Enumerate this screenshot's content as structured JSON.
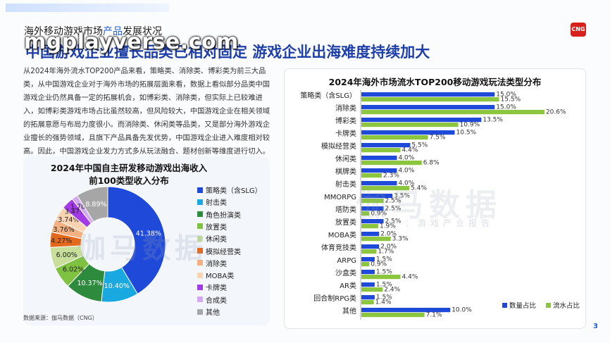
{
  "section_tag": {
    "prefix": "海外移动游戏市场",
    "highlight": "产品",
    "suffix": "发展状况"
  },
  "watermark_url": "mgplayverse.com",
  "headline": "中国游戏企业擅长品类已相对固定 游戏企业出海难度持续加大",
  "logo": "CNG",
  "intro": "从2024年海外流水TOP200产品来看，策略类、消除类、博彩类为前三大品类，从中国游戏企业对于海外市场的拓展层面来看，数据上看似部分品类中国游戏企业仍然具备一定的拓展机会，如博彩类、消除类，但实际上已较难进入，如博彩类游戏市场占比虽然较高，但风险较大，中国游戏企业在相关领域的拓展意愿与布局力度很小。而消除类、休闲类等品类，又是部分海外游戏企业擅长的强势领域，且旗下产品具备先发优势，中国游戏企业进入难度相对较高。因此，中国游戏企业发力方式多从玩法融合、题材创新等维度进行切入。",
  "source": "数据来源：伽马数据（CNG）",
  "page_number": "3",
  "watermarks": {
    "big": "伽马数据",
    "sub": "：游戏产业报告",
    "donut": "伽马数据"
  },
  "chart_data": [
    {
      "type": "pie",
      "title": "2024年中国自主研发移动游戏出海收入前100类型收入分布",
      "title_lines": [
        "2024年中国自主研发移动游戏出海收入",
        "前100类型收入分布"
      ],
      "categories": [
        "策略类（含SLG）",
        "射击类",
        "角色扮演类",
        "放置类",
        "休闲类",
        "模拟经营类",
        "消除类",
        "MOBA类",
        "卡牌类",
        "合成类",
        "其他"
      ],
      "values": [
        41.38,
        10.4,
        10.37,
        6.02,
        6.0,
        4.27,
        3.76,
        3.74,
        3.47,
        1.7,
        8.89
      ],
      "labels": [
        "41.38%",
        "10.40%",
        "10.37%",
        "6.02%",
        "6.00%",
        "4.27%",
        "3.76%",
        "3.74%",
        "3.47%",
        "1.70%",
        "8.89%"
      ],
      "colors": [
        "#1f49d8",
        "#19a8e0",
        "#2e8b3e",
        "#7fc241",
        "#c7df9a",
        "#e36a1c",
        "#f4b183",
        "#f9d3b2",
        "#a23be6",
        "#d4a7f3",
        "#a6a6a6"
      ],
      "legend_position": "right"
    },
    {
      "type": "bar",
      "title": "2024年海外市场流水TOP200移动游戏玩法类型分布",
      "categories": [
        "策略类（含SLG）",
        "消除类",
        "博彩类",
        "卡牌类",
        "模拟经营类",
        "休闲类",
        "棋牌类",
        "射击类",
        "MMORPG",
        "塔防类",
        "放置类",
        "MOBA类",
        "体育竞技类",
        "ARPG",
        "沙盒类",
        "AR类",
        "回合制RPG类",
        "其他"
      ],
      "series": [
        {
          "name": "数量占比",
          "color": "#1f49d8",
          "values": [
            15.0,
            15.0,
            13.5,
            10.5,
            5.5,
            4.0,
            4.0,
            4.0,
            3.5,
            2.5,
            2.5,
            2.0,
            2.0,
            1.5,
            1.5,
            1.5,
            1.5,
            10.0
          ],
          "labels": [
            "15.0%",
            "15.0%",
            "13.5%",
            "10.5%",
            "5.5%",
            "4.0%",
            "4.0%",
            "4.0%",
            "3.5%",
            "2.5%",
            "2.5%",
            "2.0%",
            "2.0%",
            "1.5%",
            "1.5%",
            "1.5%",
            "1.5%",
            "10.0%"
          ]
        },
        {
          "name": "流水占比",
          "color": "#8cc63f",
          "values": [
            15.5,
            20.6,
            10.9,
            7.5,
            4.4,
            6.8,
            2.3,
            5.4,
            2.5,
            0.9,
            1.9,
            3.3,
            1.7,
            0.9,
            4.4,
            2.4,
            1.4,
            7.1
          ],
          "labels": [
            "15.5%",
            "20.6%",
            "10.9%",
            "7.5%",
            "4.4%",
            "6.8%",
            "2.3%",
            "5.4%",
            "2.5%",
            "0.9%",
            "1.9%",
            "3.3%",
            "1.7%",
            "0.9%",
            "4.4%",
            "2.4%",
            "1.4%",
            "7.1%"
          ]
        }
      ],
      "orientation": "horizontal",
      "legend_position": "bottom-right",
      "grid": false
    }
  ]
}
